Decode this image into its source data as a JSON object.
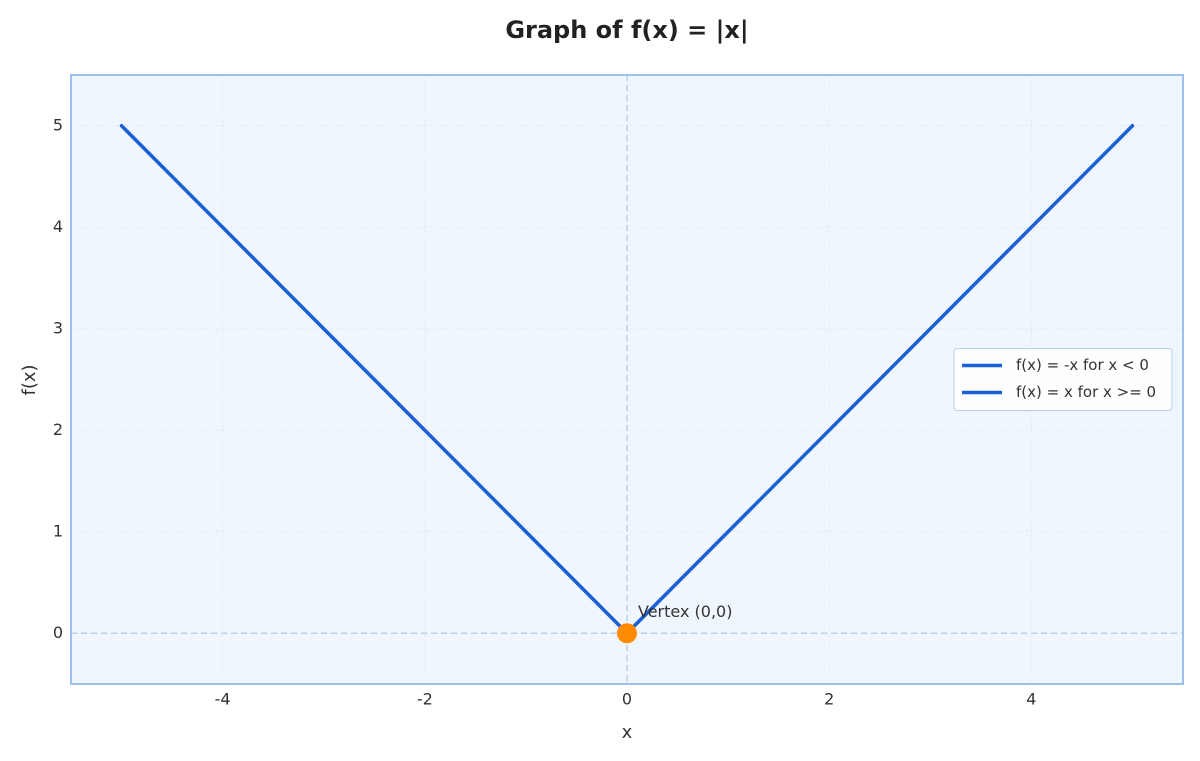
{
  "chart_data": {
    "type": "line",
    "title": "Graph of f(x) = |x|",
    "x_label": "x",
    "y_label": "f(x)",
    "series": [
      {
        "name": "f(x) = -x for x < 0",
        "color": "#1a5fd6",
        "x": [
          -5,
          0
        ],
        "values": [
          5,
          0
        ]
      },
      {
        "name": "f(x) = x for x >= 0",
        "color": "#1a5fd6",
        "x": [
          0,
          5
        ],
        "values": [
          0,
          5
        ]
      }
    ],
    "annotations": [
      {
        "text": "Vertex (0,0)",
        "x": 0,
        "y": 0,
        "color": "#ff8c00"
      }
    ],
    "xlim": [
      -5.5,
      5.5
    ],
    "ylim": [
      -0.5,
      5.5
    ],
    "xticks": [
      -4,
      -2,
      0,
      2,
      4
    ],
    "yticks": [
      0,
      1,
      2,
      3,
      4,
      5
    ],
    "grid": true,
    "zero_lines": true,
    "legend": "center right"
  }
}
